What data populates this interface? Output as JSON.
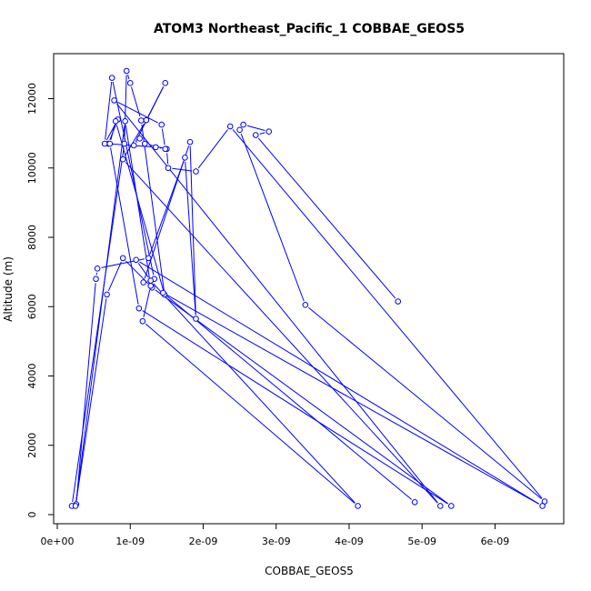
{
  "chart_data": {
    "type": "line",
    "title": "ATOM3 Northeast_Pacific_1 COBBAE_GEOS5",
    "xlabel": "COBBAE_GEOS5",
    "ylabel": "Altitude (m)",
    "xlim": [
      0,
      6.8e-09
    ],
    "ylim": [
      0,
      13000
    ],
    "grid": false,
    "legend": "none",
    "x_ticks": [
      {
        "value": 0,
        "label": "0e+00"
      },
      {
        "value": 1e-09,
        "label": "1e-09"
      },
      {
        "value": 2e-09,
        "label": "2e-09"
      },
      {
        "value": 3e-09,
        "label": "3e-09"
      },
      {
        "value": 4e-09,
        "label": "4e-09"
      },
      {
        "value": 5e-09,
        "label": "5e-09"
      },
      {
        "value": 6e-09,
        "label": "6e-09"
      }
    ],
    "y_ticks": [
      {
        "value": 0,
        "label": "0"
      },
      {
        "value": 2000,
        "label": "2000"
      },
      {
        "value": 4000,
        "label": "4000"
      },
      {
        "value": 6000,
        "label": "6000"
      },
      {
        "value": 8000,
        "label": "8000"
      },
      {
        "value": 10000,
        "label": "10000"
      },
      {
        "value": 12000,
        "label": "12000"
      }
    ],
    "series": [
      {
        "color": "#0000ff",
        "x": [
          4.67e-09,
          2.72e-09,
          2.9e-09,
          2.55e-09,
          2.5e-09,
          3.4e-09,
          6.68e-09,
          2.37e-09,
          1.9e-09,
          1.52e-09,
          1.5e-09,
          1.2e-09,
          1.13e-09,
          1.05e-09,
          1.48e-09,
          1.22e-09,
          9e-10,
          5.25e-09,
          7.8e-10,
          1.43e-09,
          1.48e-09,
          1.35e-09,
          7e-10,
          8.3e-10,
          6.5e-10,
          7.5e-10,
          1.33e-09,
          1.18e-09,
          1.82e-09,
          1.9e-09,
          1.75e-09,
          1.25e-09,
          5.5e-10,
          5.3e-10,
          2.6e-10,
          2e-10,
          9.2e-10,
          9.5e-10,
          1e-09,
          1.15e-09,
          1.47e-09,
          8e-10,
          7.2e-10,
          1.12e-09,
          5.4e-09,
          1.3e-09,
          9e-10,
          6.8e-10,
          2.5e-10,
          9.3e-10,
          1.28e-09,
          1.17e-09,
          4.12e-09,
          1.28e-09,
          1.08e-09,
          6.65e-09,
          1.45e-09,
          4.9e-09
        ],
        "y": [
          6150,
          10950,
          11050,
          11250,
          11100,
          6050,
          380,
          11200,
          9900,
          10000,
          10550,
          10700,
          10850,
          10650,
          12450,
          11380,
          10250,
          250,
          11950,
          11250,
          10550,
          10600,
          10700,
          11400,
          10700,
          12600,
          6800,
          6700,
          10750,
          5650,
          10300,
          7400,
          7100,
          6800,
          300,
          250,
          10700,
          12800,
          12450,
          11370,
          6350,
          11350,
          10700,
          5950,
          250,
          6550,
          7400,
          6350,
          250,
          11350,
          6600,
          5580,
          250,
          6750,
          7350,
          250,
          6400,
          360
        ]
      }
    ]
  }
}
